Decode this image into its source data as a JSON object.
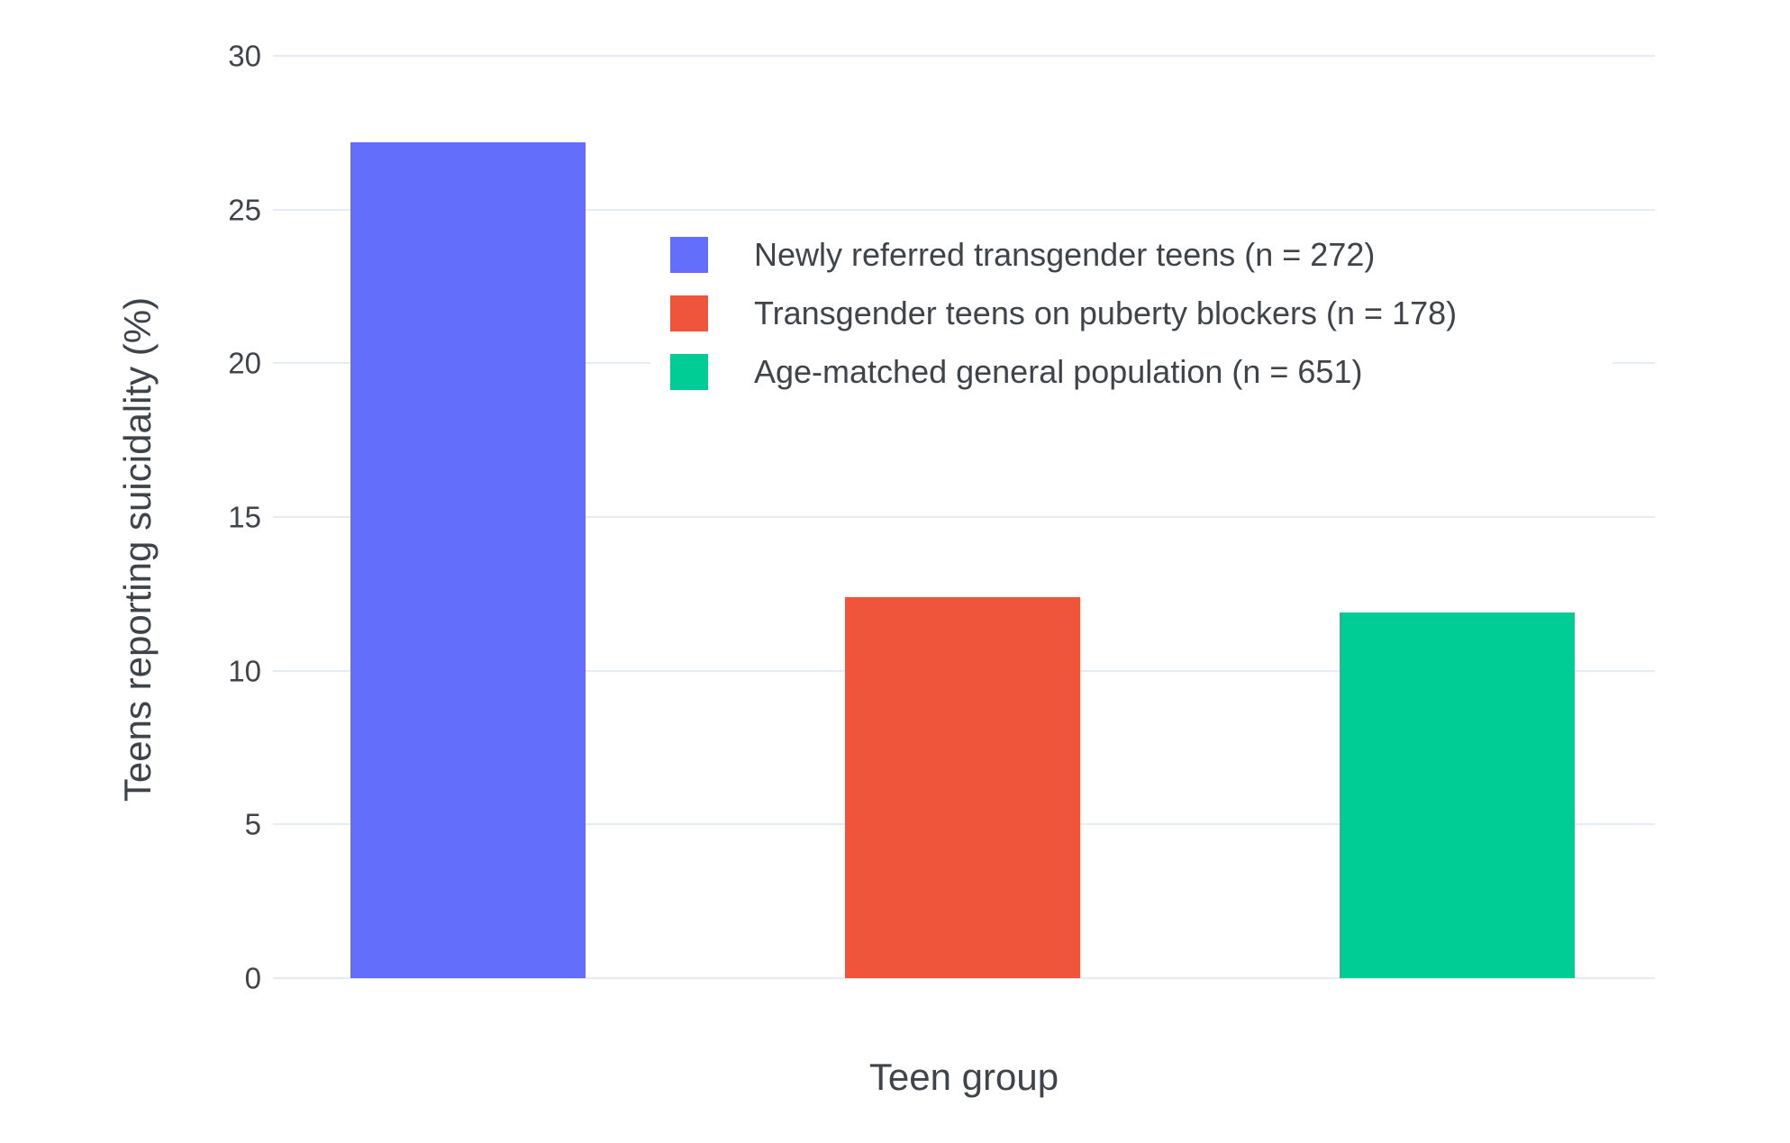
{
  "chart_data": {
    "type": "bar",
    "title": "",
    "xlabel": "Teen group",
    "ylabel": "Teens reporting suicidality (%)",
    "ylim": [
      0,
      30
    ],
    "yticks": [
      0,
      5,
      10,
      15,
      20,
      25,
      30
    ],
    "grid": true,
    "legend_position": "inside-top-center",
    "categories": [
      "Newly referred transgender teens",
      "Transgender teens on puberty blockers",
      "Age-matched general population"
    ],
    "series": [
      {
        "name": "Newly referred transgender teens (n = 272)",
        "value": 27.2,
        "color": "#636EFA"
      },
      {
        "name": "Transgender teens on puberty blockers (n = 178)",
        "value": 12.4,
        "color": "#EF553B"
      },
      {
        "name": "Age-matched general population (n = 651)",
        "value": 11.9,
        "color": "#00CC96"
      }
    ]
  },
  "colors": {
    "background": "#ffffff",
    "grid": "#E5ECF6",
    "text": "#3f444a"
  }
}
